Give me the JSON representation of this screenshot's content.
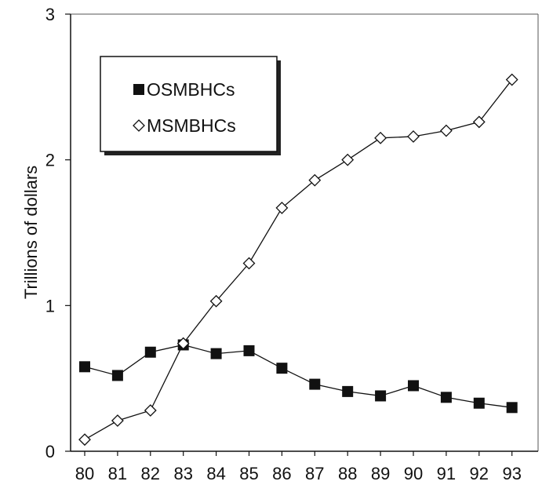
{
  "chart_data": {
    "type": "line",
    "title": "",
    "xlabel": "",
    "ylabel": "Trillions of dollars",
    "categories": [
      "80",
      "81",
      "82",
      "83",
      "84",
      "85",
      "86",
      "87",
      "88",
      "89",
      "90",
      "91",
      "92",
      "93"
    ],
    "ylim": [
      0,
      3
    ],
    "yticks": [
      "0",
      "1",
      "2",
      "3"
    ],
    "grid": false,
    "legend": "top-left",
    "series": [
      {
        "name": "OSMBHCs",
        "marker": "filled-square",
        "color": "#111111",
        "values": [
          0.58,
          0.52,
          0.68,
          0.73,
          0.67,
          0.69,
          0.57,
          0.46,
          0.41,
          0.38,
          0.45,
          0.37,
          0.33,
          0.3
        ]
      },
      {
        "name": "MSMBHCs",
        "marker": "open-diamond",
        "color": "#111111",
        "values": [
          0.08,
          0.21,
          0.28,
          0.74,
          1.03,
          1.29,
          1.67,
          1.86,
          2.0,
          2.15,
          2.16,
          2.2,
          2.26,
          2.55
        ]
      }
    ]
  }
}
